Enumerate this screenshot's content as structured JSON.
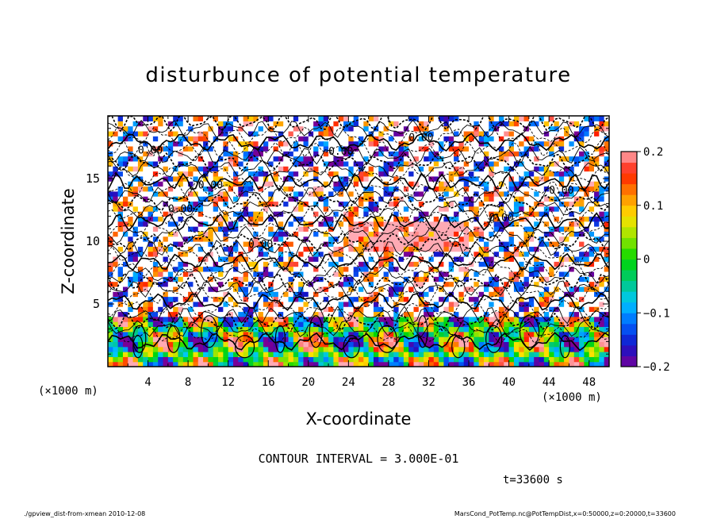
{
  "chart_data": {
    "type": "heatmap",
    "title": "disturbunce of potential temperature",
    "xlabel": "X-coordinate",
    "ylabel": "Z-coordinate",
    "x_unit": "(×1000 m)",
    "y_unit": "(×1000 m)",
    "xlim": [
      0,
      50
    ],
    "ylim": [
      0,
      20
    ],
    "x_ticks": [
      4,
      8,
      12,
      16,
      20,
      24,
      28,
      32,
      36,
      40,
      44,
      48
    ],
    "y_ticks": [
      5,
      10,
      15
    ],
    "colorbar": {
      "range": [
        -0.2,
        0.2
      ],
      "ticks": [
        "0.2",
        "0.1",
        "0",
        "−0.1",
        "−0.2"
      ],
      "tick_values": [
        0.2,
        0.1,
        0,
        -0.1,
        -0.2
      ]
    },
    "contour_interval": "CONTOUR INTERVAL = 3.000E-01",
    "time_label": "t=33600 s",
    "contour_labels": [
      "0.00"
    ],
    "footer_left": "./gpview_dist-from-xmean   2010-12-08",
    "footer_right": "MarsCond_PotTemp.nc@PotTempDist,x=0:50000,z=0:20000,t=33600"
  }
}
